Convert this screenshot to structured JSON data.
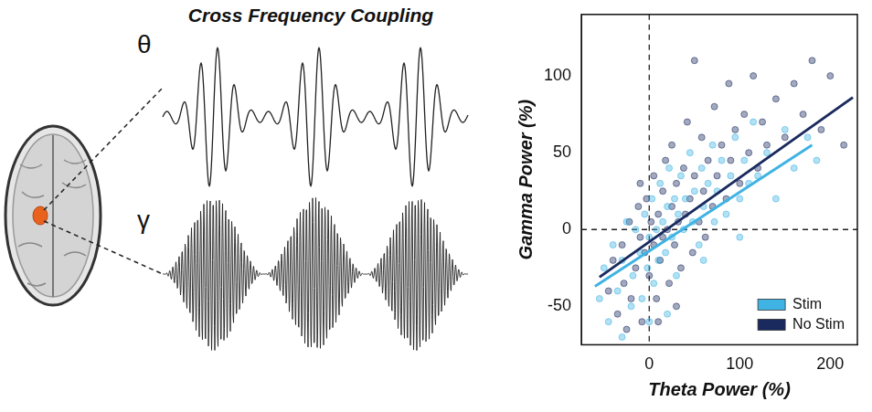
{
  "diagram": {
    "title": "Cross Frequency Coupling",
    "signals": [
      {
        "label": "θ"
      },
      {
        "label": "γ"
      }
    ]
  },
  "chart_data": {
    "type": "scatter",
    "x_label": "Theta Power (%)",
    "y_label": "Gamma Power (%)",
    "xlim": [
      -75,
      230
    ],
    "ylim": [
      -75,
      140
    ],
    "xticks": [
      0,
      100,
      200
    ],
    "yticks": [
      -50,
      0,
      50,
      100
    ],
    "grid": false,
    "legend": "lower right",
    "reference_lines": [
      {
        "axis": "x",
        "value": 0
      },
      {
        "axis": "y",
        "value": 0
      }
    ],
    "series": [
      {
        "name": "Stim",
        "color": "#3fb3e3",
        "marker": "circle",
        "x": [
          -55,
          -50,
          -45,
          -40,
          -35,
          -30,
          -25,
          -20,
          -18,
          -15,
          -10,
          -8,
          -5,
          -2,
          0,
          3,
          5,
          8,
          10,
          12,
          15,
          18,
          20,
          22,
          25,
          28,
          30,
          32,
          35,
          38,
          40,
          45,
          48,
          50,
          55,
          58,
          60,
          65,
          70,
          72,
          75,
          80,
          85,
          90,
          95,
          100,
          105,
          110,
          115,
          120,
          130,
          140,
          150,
          160,
          175,
          185,
          -30,
          0,
          20,
          60,
          100
        ],
        "values": [
          -45,
          -25,
          -60,
          -10,
          -40,
          -20,
          5,
          -50,
          -30,
          0,
          -15,
          -45,
          10,
          -25,
          -5,
          20,
          -35,
          0,
          -20,
          30,
          5,
          -15,
          15,
          40,
          -5,
          20,
          -30,
          10,
          35,
          0,
          20,
          50,
          5,
          25,
          -10,
          40,
          15,
          30,
          55,
          5,
          25,
          45,
          10,
          35,
          60,
          20,
          45,
          30,
          70,
          35,
          50,
          20,
          65,
          40,
          60,
          45,
          -70,
          -60,
          -55,
          -20,
          -5
        ],
        "fit_line": {
          "x": [
            -60,
            180
          ],
          "values": [
            -37,
            55
          ]
        }
      },
      {
        "name": "No Stim",
        "color": "#1a2a5e",
        "marker": "circle",
        "x": [
          -45,
          -40,
          -35,
          -30,
          -28,
          -22,
          -20,
          -15,
          -12,
          -10,
          -8,
          -5,
          -3,
          0,
          2,
          5,
          5,
          8,
          10,
          12,
          15,
          15,
          18,
          20,
          22,
          25,
          25,
          28,
          30,
          32,
          35,
          38,
          40,
          42,
          45,
          48,
          50,
          55,
          58,
          60,
          62,
          65,
          70,
          72,
          75,
          80,
          85,
          88,
          90,
          95,
          100,
          105,
          110,
          115,
          120,
          125,
          130,
          140,
          150,
          160,
          170,
          180,
          190,
          200,
          215,
          -25,
          -10,
          10,
          30,
          50
        ],
        "values": [
          -40,
          -20,
          -55,
          -10,
          -35,
          5,
          -45,
          -25,
          15,
          -5,
          -60,
          -15,
          20,
          -30,
          5,
          -10,
          35,
          -45,
          10,
          -20,
          25,
          -5,
          45,
          0,
          -35,
          15,
          55,
          -10,
          30,
          5,
          -25,
          40,
          10,
          70,
          20,
          -15,
          35,
          5,
          60,
          25,
          -5,
          45,
          15,
          80,
          35,
          55,
          20,
          95,
          45,
          65,
          30,
          75,
          50,
          100,
          40,
          70,
          55,
          85,
          60,
          95,
          75,
          110,
          65,
          100,
          55,
          -65,
          30,
          -60,
          -50,
          110
        ],
        "fit_line": {
          "x": [
            -55,
            225
          ],
          "values": [
            -31,
            86
          ]
        }
      }
    ]
  }
}
